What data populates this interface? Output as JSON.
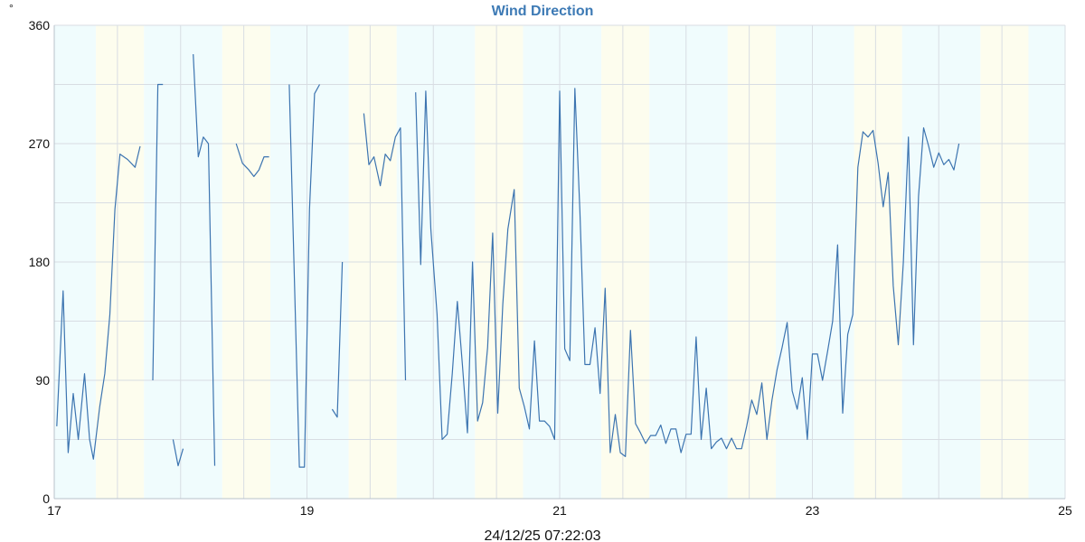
{
  "colors": {
    "title": "#3d7ab5",
    "line": "#3c74b0",
    "band_cyan": "#f0fcfd",
    "band_yellow": "#fdfdee",
    "grid": "#d8dde3",
    "axis": "#b9c2cb"
  },
  "chart_data": {
    "type": "line",
    "title": "Wind Direction",
    "unit_label": "°",
    "timestamp": "24/12/25 07:22:03",
    "xlim": [
      17,
      25
    ],
    "ylim": [
      0,
      360
    ],
    "x_ticks": [
      17,
      19,
      21,
      23,
      25
    ],
    "y_ticks": [
      0,
      90,
      180,
      270,
      360
    ],
    "grid": true,
    "background_bands": [
      {
        "from": 17.0,
        "to": 17.33,
        "color": "cyan"
      },
      {
        "from": 17.33,
        "to": 17.71,
        "color": "yellow"
      },
      {
        "from": 17.71,
        "to": 18.33,
        "color": "cyan"
      },
      {
        "from": 18.33,
        "to": 18.71,
        "color": "yellow"
      },
      {
        "from": 18.71,
        "to": 19.33,
        "color": "cyan"
      },
      {
        "from": 19.33,
        "to": 19.71,
        "color": "yellow"
      },
      {
        "from": 19.71,
        "to": 20.33,
        "color": "cyan"
      },
      {
        "from": 20.33,
        "to": 20.71,
        "color": "yellow"
      },
      {
        "from": 20.71,
        "to": 21.33,
        "color": "cyan"
      },
      {
        "from": 21.33,
        "to": 21.71,
        "color": "yellow"
      },
      {
        "from": 21.71,
        "to": 22.33,
        "color": "cyan"
      },
      {
        "from": 22.33,
        "to": 22.71,
        "color": "yellow"
      },
      {
        "from": 22.71,
        "to": 23.33,
        "color": "cyan"
      },
      {
        "from": 23.33,
        "to": 23.71,
        "color": "yellow"
      },
      {
        "from": 23.71,
        "to": 24.33,
        "color": "cyan"
      },
      {
        "from": 24.33,
        "to": 24.71,
        "color": "yellow"
      },
      {
        "from": 24.71,
        "to": 25.0,
        "color": "cyan"
      }
    ],
    "series": [
      {
        "segments": [
          [
            [
              17.02,
              55
            ],
            [
              17.07,
              158
            ],
            [
              17.11,
              35
            ],
            [
              17.15,
              80
            ],
            [
              17.19,
              45
            ],
            [
              17.24,
              95
            ],
            [
              17.28,
              45
            ],
            [
              17.31,
              30
            ],
            [
              17.36,
              70
            ],
            [
              17.4,
              95
            ],
            [
              17.44,
              140
            ],
            [
              17.48,
              220
            ],
            [
              17.52,
              262
            ],
            [
              17.58,
              258
            ],
            [
              17.64,
              252
            ],
            [
              17.68,
              268
            ]
          ],
          [
            [
              17.78,
              90
            ],
            [
              17.82,
              315
            ],
            [
              17.86,
              315
            ]
          ],
          [
            [
              17.94,
              45
            ],
            [
              17.98,
              25
            ],
            [
              18.02,
              38
            ]
          ],
          [
            [
              18.1,
              338
            ],
            [
              18.14,
              260
            ],
            [
              18.18,
              275
            ],
            [
              18.22,
              270
            ],
            [
              18.27,
              25
            ]
          ],
          [
            [
              18.44,
              270
            ],
            [
              18.49,
              255
            ],
            [
              18.54,
              250
            ],
            [
              18.58,
              245
            ],
            [
              18.62,
              250
            ],
            [
              18.66,
              260
            ],
            [
              18.7,
              260
            ]
          ],
          [
            [
              18.86,
              315
            ],
            [
              18.94,
              24
            ],
            [
              18.98,
              24
            ],
            [
              19.02,
              220
            ],
            [
              19.06,
              308
            ],
            [
              19.1,
              315
            ]
          ],
          [
            [
              19.2,
              68
            ],
            [
              19.24,
              62
            ],
            [
              19.28,
              180
            ]
          ],
          [
            [
              19.45,
              293
            ],
            [
              19.49,
              254
            ],
            [
              19.53,
              260
            ],
            [
              19.58,
              238
            ],
            [
              19.62,
              262
            ],
            [
              19.66,
              257
            ],
            [
              19.7,
              275
            ],
            [
              19.74,
              282
            ],
            [
              19.78,
              90
            ]
          ],
          [
            [
              19.86,
              309
            ],
            [
              19.9,
              178
            ],
            [
              19.94,
              310
            ],
            [
              19.98,
              205
            ],
            [
              20.03,
              140
            ],
            [
              20.07,
              45
            ],
            [
              20.11,
              49
            ],
            [
              20.15,
              95
            ],
            [
              20.19,
              150
            ],
            [
              20.23,
              102
            ],
            [
              20.27,
              50
            ],
            [
              20.31,
              180
            ],
            [
              20.35,
              59
            ],
            [
              20.39,
              73
            ],
            [
              20.43,
              115
            ],
            [
              20.47,
              202
            ],
            [
              20.51,
              65
            ],
            [
              20.55,
              148
            ],
            [
              20.59,
              205
            ],
            [
              20.64,
              235
            ],
            [
              20.68,
              84
            ],
            [
              20.72,
              70
            ],
            [
              20.76,
              53
            ],
            [
              20.8,
              120
            ],
            [
              20.84,
              59
            ],
            [
              20.88,
              59
            ],
            [
              20.92,
              55
            ],
            [
              20.96,
              45
            ],
            [
              21.0,
              310
            ],
            [
              21.04,
              114
            ],
            [
              21.08,
              105
            ],
            [
              21.12,
              312
            ],
            [
              21.16,
              218
            ],
            [
              21.2,
              102
            ],
            [
              21.24,
              102
            ],
            [
              21.28,
              130
            ],
            [
              21.32,
              80
            ],
            [
              21.36,
              160
            ],
            [
              21.4,
              35
            ],
            [
              21.44,
              64
            ],
            [
              21.48,
              35
            ],
            [
              21.52,
              32
            ],
            [
              21.56,
              128
            ],
            [
              21.6,
              57
            ],
            [
              21.64,
              50
            ],
            [
              21.68,
              42
            ],
            [
              21.72,
              48
            ],
            [
              21.76,
              48
            ],
            [
              21.8,
              56
            ],
            [
              21.84,
              42
            ],
            [
              21.88,
              53
            ],
            [
              21.92,
              53
            ],
            [
              21.96,
              35
            ],
            [
              22.0,
              49
            ],
            [
              22.04,
              49
            ],
            [
              22.08,
              123
            ],
            [
              22.12,
              45
            ],
            [
              22.16,
              84
            ],
            [
              22.2,
              38
            ],
            [
              22.24,
              43
            ],
            [
              22.28,
              46
            ],
            [
              22.32,
              38
            ],
            [
              22.36,
              46
            ],
            [
              22.4,
              38
            ],
            [
              22.44,
              38
            ],
            [
              22.48,
              55
            ],
            [
              22.52,
              75
            ],
            [
              22.56,
              64
            ],
            [
              22.6,
              88
            ],
            [
              22.64,
              45
            ],
            [
              22.68,
              75
            ],
            [
              22.72,
              98
            ],
            [
              22.76,
              115
            ],
            [
              22.8,
              134
            ],
            [
              22.84,
              82
            ],
            [
              22.88,
              68
            ],
            [
              22.92,
              92
            ],
            [
              22.96,
              45
            ],
            [
              23.0,
              110
            ],
            [
              23.04,
              110
            ],
            [
              23.08,
              90
            ],
            [
              23.12,
              112
            ],
            [
              23.16,
              135
            ],
            [
              23.2,
              193
            ],
            [
              23.24,
              65
            ],
            [
              23.28,
              125
            ],
            [
              23.32,
              140
            ],
            [
              23.36,
              252
            ],
            [
              23.4,
              279
            ],
            [
              23.44,
              275
            ],
            [
              23.48,
              280
            ],
            [
              23.52,
              255
            ],
            [
              23.56,
              222
            ],
            [
              23.6,
              248
            ],
            [
              23.64,
              162
            ],
            [
              23.68,
              117
            ],
            [
              23.72,
              180
            ],
            [
              23.76,
              275
            ],
            [
              23.8,
              117
            ],
            [
              23.84,
              230
            ],
            [
              23.88,
              282
            ],
            [
              23.92,
              268
            ],
            [
              23.96,
              252
            ],
            [
              24.0,
              263
            ],
            [
              24.04,
              254
            ],
            [
              24.08,
              258
            ],
            [
              24.12,
              250
            ],
            [
              24.16,
              270
            ]
          ]
        ]
      }
    ]
  }
}
